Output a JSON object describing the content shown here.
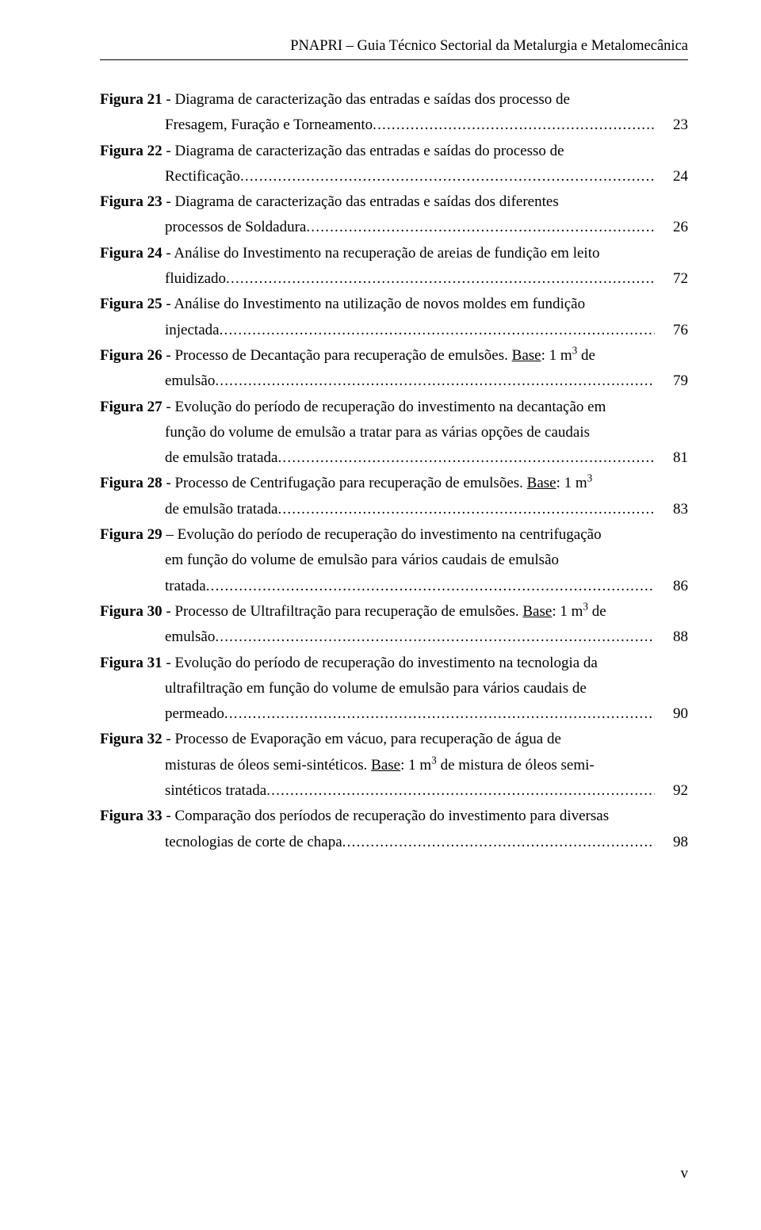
{
  "header": "PNAPRI – Guia Técnico Sectorial da Metalurgia e Metalomecânica",
  "footer": "v",
  "leader_dots": "...............................................................................................................................................................................................................................",
  "entries": [
    {
      "label": "Figura 21",
      "first_line": " - Diagrama de caracterização das entradas e saídas dos processo de",
      "cont_lines": [
        "Fresagem, Furação e Torneamento"
      ],
      "page": "23"
    },
    {
      "label": "Figura 22",
      "first_line": " - Diagrama de caracterização das entradas e saídas do processo de",
      "cont_lines": [
        "Rectificação"
      ],
      "page": "24"
    },
    {
      "label": "Figura 23",
      "first_line": " - Diagrama de caracterização das entradas e saídas dos diferentes",
      "cont_lines": [
        "processos de Soldadura"
      ],
      "page": "26"
    },
    {
      "label": "Figura 24",
      "first_line": " - Análise do Investimento na recuperação de areias de fundição em leito",
      "cont_lines": [
        "fluidizado"
      ],
      "page": "72"
    },
    {
      "label": "Figura 25",
      "first_line": " - Análise do Investimento na utilização de novos moldes em fundição",
      "cont_lines": [
        "injectada"
      ],
      "page": "76"
    },
    {
      "label": "Figura 26",
      "first_line_html": " - Processo de Decantação para recuperação de emulsões. <span class=\"u\">Base</span>: 1 m<sup>3</sup> de",
      "cont_lines": [
        "emulsão"
      ],
      "page": "79"
    },
    {
      "label": "Figura 27",
      "first_line": " - Evolução do período de recuperação do investimento na decantação em",
      "mid_lines": [
        "função do volume de emulsão a tratar para  as várias opções de caudais"
      ],
      "cont_lines": [
        "de emulsão tratada"
      ],
      "page": "81"
    },
    {
      "label": "Figura 28",
      "first_line_html": " - Processo de Centrifugação para recuperação de emulsões. <span class=\"u\">Base</span>: 1 m<sup>3</sup>",
      "cont_lines": [
        "de emulsão tratada"
      ],
      "page": "83"
    },
    {
      "label": "Figura 29",
      "first_line": " – Evolução do período de recuperação do investimento na centrifugação",
      "mid_lines": [
        "em função do volume de emulsão para vários caudais de emulsão"
      ],
      "cont_lines": [
        "tratada"
      ],
      "page": "86"
    },
    {
      "label": "Figura 30",
      "first_line_html": " - Processo de Ultrafiltração para recuperação de emulsões. <span class=\"u\">Base</span>: 1 m<sup>3</sup> de",
      "cont_lines": [
        "emulsão"
      ],
      "page": "88"
    },
    {
      "label": "Figura 31",
      "first_line": " - Evolução do período de recuperação do investimento na tecnologia da",
      "mid_lines": [
        "ultrafiltração em função do volume de emulsão para vários caudais de"
      ],
      "cont_lines": [
        "permeado"
      ],
      "page": "90"
    },
    {
      "label": "Figura 32",
      "first_line": " - Processo de Evaporação em vácuo, para recuperação de água de",
      "mid_lines_html": [
        "misturas de óleos semi-sintéticos. <span class=\"u\">Base</span>: 1 m<sup>3</sup> de mistura de óleos semi-"
      ],
      "cont_lines": [
        "sintéticos tratada"
      ],
      "page": "92"
    },
    {
      "label": "Figura 33",
      "first_line": " - Comparação dos períodos de recuperação do investimento para diversas",
      "cont_lines": [
        "tecnologias de corte de chapa"
      ],
      "page": "98"
    }
  ]
}
